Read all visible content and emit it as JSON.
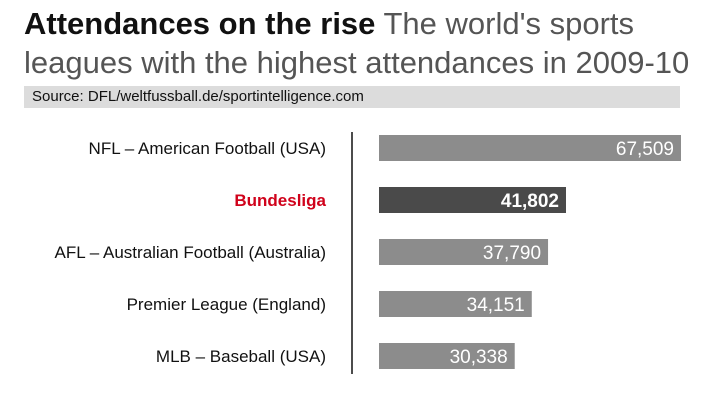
{
  "title": "Attendances on the rise",
  "subtitle_part1": "The world's sports",
  "subtitle_part2": "leagues with the highest attendances in 2009-10",
  "source": "Source: DFL/weltfussball.de/sportintelligence.com",
  "colors": {
    "bar": "#8c8c8c",
    "bar_highlight": "#4a4a4a",
    "label_highlight": "#d0021b",
    "source_bg": "#dcdcdc"
  },
  "chart_data": {
    "type": "bar",
    "orientation": "horizontal",
    "categories": [
      "NFL – American Football (USA)",
      "Bundesliga",
      "AFL – Australian Football (Australia)",
      "Premier League (England)",
      "MLB – Baseball (USA)"
    ],
    "values": [
      67509,
      41802,
      37790,
      34151,
      30338
    ],
    "value_labels": [
      "67,509",
      "41,802",
      "37,790",
      "34,151",
      "30,338"
    ],
    "highlight_index": 1,
    "xlim": [
      0,
      67509
    ],
    "grid": false
  }
}
